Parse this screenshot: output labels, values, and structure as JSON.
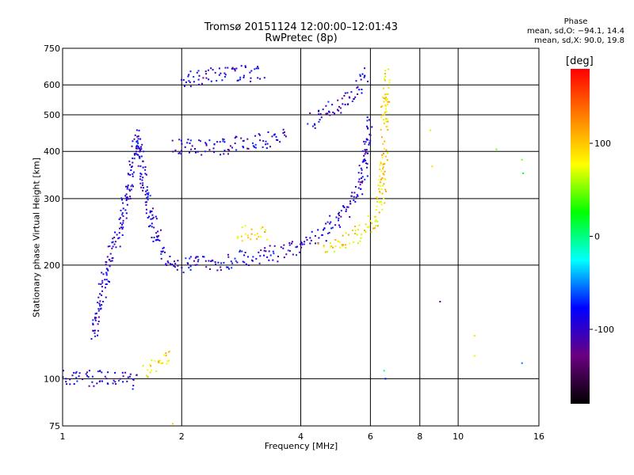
{
  "chart_data": {
    "type": "scatter",
    "title": "Tromsø 20151124 12:00:00–12:01:43",
    "subtitle": "RwPretec (8p)",
    "xlabel": "Frequency [MHz]",
    "ylabel": "Stationary phase Virtual Height [km]",
    "x_scale": "log",
    "y_scale": "log",
    "xlim": [
      1,
      16
    ],
    "ylim": [
      75,
      750
    ],
    "x_ticks": [
      1,
      2,
      4,
      6,
      8,
      10,
      16
    ],
    "y_ticks": [
      75,
      100,
      200,
      300,
      400,
      500,
      600,
      750
    ],
    "grid": true,
    "colorbar": {
      "label": "[deg]",
      "range": [
        -180,
        180
      ],
      "ticks": [
        100,
        0,
        -100
      ],
      "colormap": [
        "#000000",
        "#6a0080",
        "#0000ff",
        "#00ffff",
        "#00ff00",
        "#ffff00",
        "#ff8000",
        "#ff0000"
      ]
    },
    "phase_stats": {
      "title": "Phase",
      "o_line": "mean, sd,O: −94.1, 14.4",
      "x_line": "mean, sd,X:  90.0, 19.8"
    },
    "series": [
      {
        "name": "O",
        "phase_mean": -94.1,
        "segments": [
          {
            "x": [
              1.0,
              1.1,
              1.2,
              1.3,
              1.45,
              1.55
            ],
            "y": [
              100,
              101,
              100,
              100,
              100,
              98
            ]
          },
          {
            "x": [
              1.2,
              1.25,
              1.3,
              1.35,
              1.4,
              1.45,
              1.5,
              1.55,
              1.6,
              1.7,
              1.8,
              1.9,
              2.0
            ],
            "y": [
              130,
              165,
              195,
              225,
              250,
              300,
              360,
              440,
              330,
              250,
              215,
              205,
              200
            ]
          },
          {
            "x": [
              2.0,
              2.5,
              3.0,
              3.5,
              4.0,
              4.5,
              5.0,
              5.5,
              5.8,
              5.95
            ],
            "y": [
              200,
              203,
              210,
              215,
              225,
              240,
              265,
              300,
              360,
              480
            ]
          },
          {
            "x": [
              1.9,
              2.2,
              2.5,
              2.8,
              3.1,
              3.4,
              3.7
            ],
            "y": [
              415,
              410,
              412,
              418,
              425,
              430,
              440
            ]
          },
          {
            "x": [
              4.2,
              4.6,
              5.0,
              5.4,
              5.7,
              5.9
            ],
            "y": [
              480,
              500,
              530,
              575,
              610,
              640
            ]
          },
          {
            "x": [
              2.0,
              2.3,
              2.6,
              3.2
            ],
            "y": [
              620,
              635,
              640,
              645
            ]
          }
        ]
      },
      {
        "name": "X",
        "phase_mean": 90.0,
        "segments": [
          {
            "x": [
              4.5,
              5.0,
              5.5,
              6.0,
              6.3,
              6.45,
              6.5
            ],
            "y": [
              218,
              225,
              240,
              255,
              275,
              320,
              420
            ]
          },
          {
            "x": [
              6.5,
              6.55,
              6.6
            ],
            "y": [
              450,
              540,
              640
            ]
          },
          {
            "x": [
              2.8,
              3.0,
              3.3
            ],
            "y": [
              245,
              242,
              238
            ]
          },
          {
            "x": [
              1.6,
              1.7,
              1.8,
              1.9
            ],
            "y": [
              105,
              108,
              112,
              115
            ]
          }
        ]
      }
    ],
    "outliers": {
      "x": [
        8.5,
        8.6,
        9.0,
        11.0,
        12.5,
        14.5,
        14.6,
        14.5,
        11.0,
        6.5,
        6.55,
        1.9
      ],
      "y": [
        455,
        365,
        160,
        130,
        405,
        380,
        350,
        110,
        115,
        105,
        100,
        76
      ]
    }
  }
}
